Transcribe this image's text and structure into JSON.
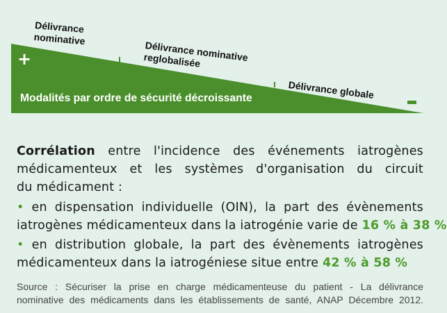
{
  "diagram": {
    "labels": [
      "Délivrance nominative",
      "Délivrance nominative reglobalisée",
      "Délivrance globale"
    ],
    "label_lines": [
      [
        "Délivrance",
        "nominative"
      ],
      [
        "Délivrance nominative",
        "reglobalisée"
      ],
      [
        "Délivrance globale"
      ]
    ],
    "plus_symbol": "+",
    "minus_symbol": "-",
    "caption": "Modalités par ordre de sécurité décroissante",
    "colors": {
      "wedge": "#4a8f2b",
      "background": "#e3f1ea",
      "highlight": "#4e9a2a"
    }
  },
  "body": {
    "intro_bold": "Corrélation",
    "intro_line1_rest": " entre l'incidence des événements iatrogènes",
    "intro_line2": "médicamenteux et les systèmes d'organisation du circuit",
    "intro_line3": "du médicament :",
    "bullet_glyph": "•",
    "bullet1_line1": " en dispensation individuelle (OIN), la part des évènements",
    "bullet1_line2": "iatrogènes médicamenteux dans la iatrogénie varie de ",
    "bullet1_value": "16 % à 38 %",
    "bullet2_line1": " en distribution globale, la part des évènements iatrogènes",
    "bullet2_line2": "médicamenteux dans la iatrogéniese situe entre ",
    "bullet2_value": "42 % à 58 %"
  },
  "source": {
    "line1": "Source : Sécuriser la prise en charge médicamenteuse du patient - La délivrance",
    "line2": "nominative des médicaments dans les établissements de santé, ANAP Décembre 2012."
  }
}
